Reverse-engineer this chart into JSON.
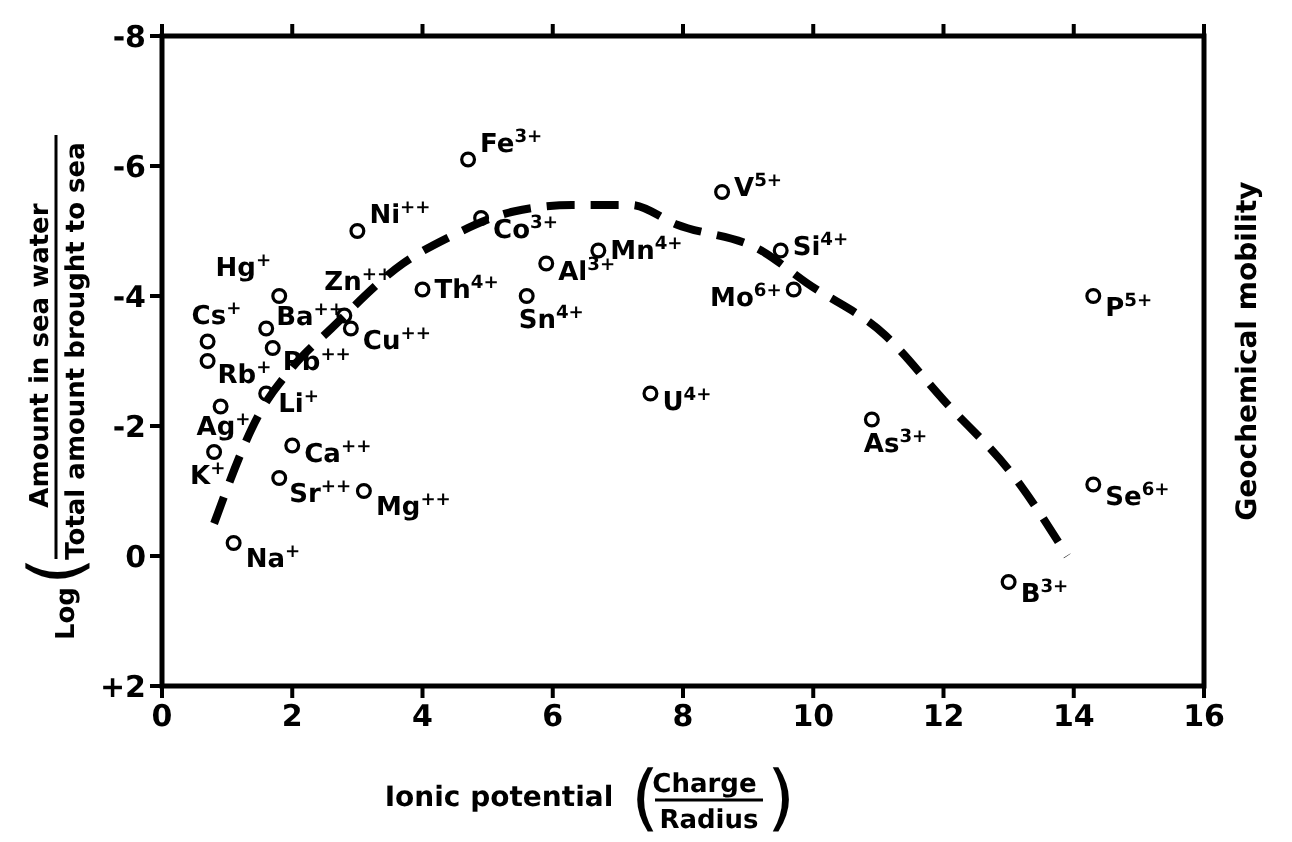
{
  "chart_data": {
    "type": "scatter",
    "xlabel": "Ionic potential (Charge\nRadius)",
    "ylabel": "Log(Amount in sea water\nTotal amount brought to sea",
    "y2label": "Geochemical mobility",
    "xlim": [
      0,
      16
    ],
    "xticks": [
      0,
      2,
      4,
      6,
      8,
      10,
      12,
      14,
      16
    ],
    "ylim": [
      2,
      -8
    ],
    "yticks": [
      -8,
      -6,
      -4,
      -2,
      0,
      {
        "value": 2,
        "label": "+2"
      }
    ],
    "grid": false,
    "series": [
      {
        "type": "scatter",
        "color": "#000000",
        "marker": "circle",
        "x": [
          4.7,
          3.0,
          4.9,
          1.8,
          4.0,
          2.8,
          2.9,
          1.6,
          0.7,
          0.7,
          1.7,
          5.9,
          5.6,
          6.7,
          1.6,
          0.9,
          0.8,
          2.0,
          1.8,
          3.1,
          1.1,
          7.5,
          10.9,
          13.0,
          14.3,
          8.6,
          9.5,
          9.7,
          14.3
        ],
        "values": [
          -6.1,
          -5.0,
          -5.2,
          -4.0,
          -4.1,
          -3.7,
          -3.5,
          -3.5,
          -3.3,
          -3.0,
          -3.2,
          -4.5,
          -4.0,
          -4.7,
          -2.5,
          -2.3,
          -1.6,
          -1.7,
          -1.2,
          -1.0,
          -0.2,
          -2.5,
          -2.1,
          0.4,
          -1.1,
          -5.6,
          -4.7,
          -4.1,
          -4.0
        ],
        "value_labels": [
          "Fe$^{3+}$",
          "Ni$^{++}$",
          "Co$^{3+}$",
          "Hg$^{+}$",
          "Th$^{4+}$",
          "Zn$^{++}$",
          "Cu$^{++}$",
          "Ba$^{++}$",
          "Cs$^{+}$",
          "Rb$^{+}$",
          "Pb$^{++}$",
          "Al$^{3+}$",
          "Sn$^{4+}$",
          "Mn$^{4+}$",
          "Li$^{+}$",
          "Ag$^{+}$",
          "K$^{+}$",
          "Ca$^{++}$",
          "Sr$^{++}$",
          "Mg$^{++}$",
          "Na$^{+}$",
          "U$^{4+}$",
          "As$^{3+}$",
          "B$^{3+}$",
          "Se$^{6+}$",
          "V$^{5+}$",
          "Si$^{4+}$",
          "Mo$^{6+}$",
          "P$^{5+}$"
        ]
      },
      {
        "type": "line",
        "color": "#000000",
        "marker": "none",
        "line_style": "dashed",
        "x": [
          0.8,
          1.5,
          2.0,
          2.6,
          3.7,
          4.4,
          5.4,
          6.3,
          7.2,
          7.9,
          9.2,
          9.9,
          11.1,
          12.0,
          13.1,
          13.9
        ],
        "values": [
          -0.5,
          -2.2,
          -2.9,
          -3.5,
          -4.5,
          -4.9,
          -5.3,
          -5.4,
          -5.4,
          -5.1,
          -4.7,
          -4.2,
          -3.4,
          -2.4,
          -1.2,
          0.0
        ]
      }
    ]
  }
}
